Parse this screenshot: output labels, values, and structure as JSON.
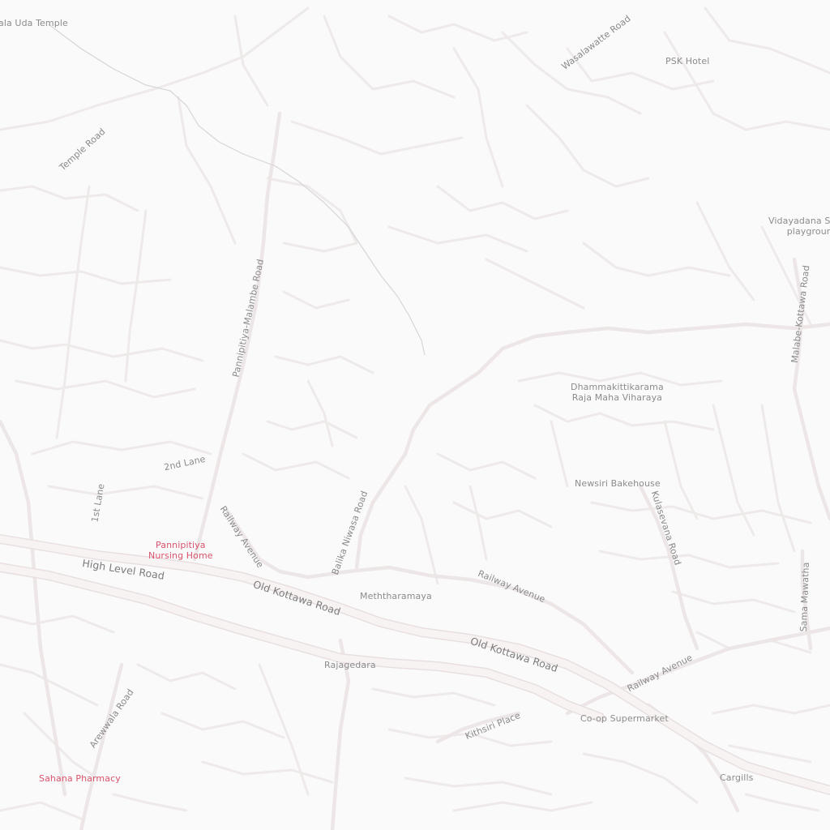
{
  "map": {
    "colors": {
      "background": "#fbfafa",
      "road_minor": "#efecec",
      "road_major": "#f1e8e9",
      "road_outline": "#e9e3e4",
      "trail": "#d9d9d9",
      "label": "#8e8e8e",
      "poi_health": "#d9536c"
    },
    "road_labels": {
      "temple_road": "Temple Road",
      "pannipitiya_malambe_road": "Pannipitiya-Malambe Road",
      "wasalawatte_road": "Wasalawatte Road",
      "malabe_kottawa_road": "Malabe-Kottawa Road",
      "second_lane": "2nd Lane",
      "first_lane": "1st Lane",
      "railway_avenue_west": "Railway Avenue",
      "balika_niwasa_road": "Balika Niwasa Road",
      "high_level_road": "High Level Road",
      "old_kottawa_road_west": "Old Kottawa Road",
      "old_kottawa_road_east": "Old Kottawa Road",
      "railway_avenue_center": "Railway Avenue",
      "railway_avenue_east": "Railway Avenue",
      "kulasevana_road": "Kulasevana Road",
      "sama_mawatha": "Sama Mawatha",
      "kithsiri_place": "Kithsiri Place",
      "arewwala_road": "Arewwala Road"
    },
    "places": {
      "uda_temple": "ala Uda Temple",
      "psk_hotel": "PSK Hotel",
      "vidayadana_line1": "Vidayadana Sch",
      "vidayadana_line2": "playground",
      "dhamma_line1": "Dhammakittikarama",
      "dhamma_line2": "Raja Maha Viharaya",
      "newsiri": "Newsiri Bakehouse",
      "nursing_line1": "Pannipitiya",
      "nursing_line2": "Nursing Home",
      "meththaramaya": "Meththaramaya",
      "rajagedara": "Rajagedara",
      "coop": "Co-op Supermarket",
      "cargills": "Cargills",
      "sahana": "Sahana Pharmacy"
    }
  }
}
